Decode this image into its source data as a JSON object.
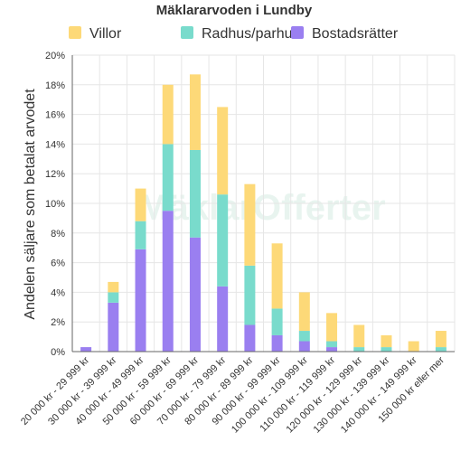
{
  "chart_data": {
    "type": "bar",
    "stacked": true,
    "title": "Mäklararvoden i Lundby",
    "ylabel": "Andelen säljare som betalat arvodet",
    "xlabel": "",
    "ylim": [
      0,
      20
    ],
    "yticks": [
      "0%",
      "2%",
      "4%",
      "6%",
      "8%",
      "10%",
      "12%",
      "14%",
      "16%",
      "18%",
      "20%"
    ],
    "grid": true,
    "legend_position": "top",
    "categories": [
      "20 000 kr - 29 999 kr",
      "30 000 kr - 39 999 kr",
      "40 000 kr - 49 999 kr",
      "50 000 kr - 59 999 kr",
      "60 000 kr - 69 999 kr",
      "70 000 kr - 79 999 kr",
      "80 000 kr - 89 999 kr",
      "90 000 kr - 99 999 kr",
      "100 000 kr - 109 999 kr",
      "110 000 kr - 119 999 kr",
      "120 000 kr - 129 999 kr",
      "130 000 kr - 139 999 kr",
      "140 000 kr - 149 999 kr",
      "150 000 kr eller mer"
    ],
    "series": [
      {
        "name": "Bostadsrätter",
        "color": "#9a7ff0",
        "values": [
          0.3,
          3.3,
          6.9,
          9.5,
          7.7,
          4.4,
          1.8,
          1.1,
          0.7,
          0.3,
          0.0,
          0.0,
          0.0,
          0.0
        ]
      },
      {
        "name": "Radhus/parhus",
        "color": "#79dbcc",
        "values": [
          0.0,
          0.7,
          1.9,
          4.5,
          5.9,
          6.2,
          4.0,
          1.8,
          0.7,
          0.4,
          0.3,
          0.3,
          0.0,
          0.3
        ]
      },
      {
        "name": "Villor",
        "color": "#fdd978",
        "values": [
          0.0,
          0.7,
          2.2,
          4.0,
          5.1,
          5.9,
          5.5,
          4.4,
          2.6,
          1.9,
          1.5,
          0.8,
          0.7,
          1.1
        ]
      }
    ],
    "legend_order": [
      "Villor",
      "Radhus/parhus",
      "Bostadsrätter"
    ]
  },
  "watermark": "MäklarOfferter"
}
